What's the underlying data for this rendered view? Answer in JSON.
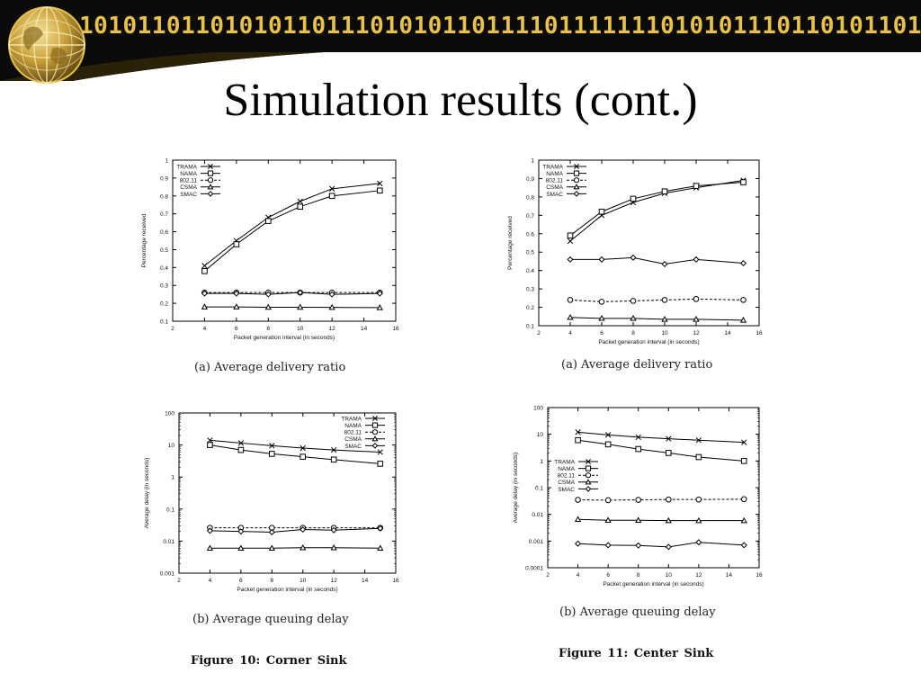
{
  "banner": {
    "binary_text": "10101101101010110111010101101111011111110101011101101011010101101110101011",
    "colors": {
      "bg": "#0b0b0b",
      "digits": "#e8c14a",
      "wave": "#2a2208"
    }
  },
  "title": "Simulation results (cont.)",
  "captions": {
    "tl": "(a) Average delivery ratio",
    "tr": "(a) Average delivery ratio",
    "bl": "(b) Average queuing delay",
    "br": "(b) Average queuing delay",
    "fig10": "Figure 10:  Corner Sink",
    "fig11": "Figure 11:  Center Sink"
  },
  "chart_data": [
    {
      "id": "corner-delivery",
      "type": "line",
      "xlabel": "Packet generation interval (in seconds)",
      "ylabel": "Percentage received",
      "xlim": [
        2,
        16
      ],
      "ylim": [
        0.1,
        1
      ],
      "yscale": "linear",
      "xticks": [
        2,
        4,
        6,
        8,
        10,
        12,
        14,
        16
      ],
      "yticks": [
        0.1,
        0.2,
        0.3,
        0.4,
        0.5,
        0.6,
        0.7,
        0.8,
        0.9,
        1
      ],
      "ytick_labels": [
        "0.1",
        "0.2",
        "0.3",
        "0.4",
        "0.5",
        "0.6",
        "0.7",
        "0.8",
        "0.9",
        "1"
      ],
      "legend_position": "top-left",
      "x": [
        4,
        6,
        8,
        10,
        12,
        15
      ],
      "series": [
        {
          "name": "TRAMA",
          "marker": "x",
          "dash": false,
          "values": [
            0.41,
            0.55,
            0.68,
            0.77,
            0.84,
            0.87
          ]
        },
        {
          "name": "NAMA",
          "marker": "square",
          "dash": false,
          "values": [
            0.38,
            0.53,
            0.66,
            0.74,
            0.8,
            0.83
          ]
        },
        {
          "name": "802.11",
          "marker": "circle",
          "dash": true,
          "values": [
            0.26,
            0.26,
            0.26,
            0.26,
            0.26,
            0.26
          ]
        },
        {
          "name": "CSMA",
          "marker": "triangle",
          "dash": false,
          "values": [
            0.18,
            0.18,
            0.178,
            0.178,
            0.177,
            0.176
          ]
        },
        {
          "name": "SMAC",
          "marker": "diamond",
          "dash": false,
          "values": [
            0.255,
            0.255,
            0.25,
            0.26,
            0.25,
            0.255
          ]
        }
      ]
    },
    {
      "id": "center-delivery",
      "type": "line",
      "xlabel": "Packet generation interval (in seconds)",
      "ylabel": "Percentage received",
      "xlim": [
        2,
        16
      ],
      "ylim": [
        0.1,
        1
      ],
      "yscale": "linear",
      "xticks": [
        2,
        4,
        6,
        8,
        10,
        12,
        14,
        16
      ],
      "yticks": [
        0.1,
        0.2,
        0.3,
        0.4,
        0.5,
        0.6,
        0.7,
        0.8,
        0.9,
        1
      ],
      "ytick_labels": [
        "0.1",
        "0.2",
        "0.3",
        "0.4",
        "0.5",
        "0.6",
        "0.7",
        "0.8",
        "0.9",
        "1"
      ],
      "legend_position": "top-left",
      "x": [
        4,
        6,
        8,
        10,
        12,
        15
      ],
      "series": [
        {
          "name": "TRAMA",
          "marker": "x",
          "dash": false,
          "values": [
            0.56,
            0.7,
            0.77,
            0.82,
            0.85,
            0.89
          ]
        },
        {
          "name": "NAMA",
          "marker": "square",
          "dash": false,
          "values": [
            0.59,
            0.72,
            0.79,
            0.83,
            0.86,
            0.88
          ]
        },
        {
          "name": "802.11",
          "marker": "circle",
          "dash": true,
          "values": [
            0.24,
            0.23,
            0.235,
            0.24,
            0.245,
            0.24
          ]
        },
        {
          "name": "CSMA",
          "marker": "triangle",
          "dash": false,
          "values": [
            0.145,
            0.14,
            0.14,
            0.135,
            0.135,
            0.13
          ]
        },
        {
          "name": "SMAC",
          "marker": "diamond",
          "dash": false,
          "values": [
            0.46,
            0.46,
            0.47,
            0.435,
            0.46,
            0.44
          ]
        }
      ]
    },
    {
      "id": "corner-delay",
      "type": "line",
      "xlabel": "Packet generation interval (in seconds)",
      "ylabel": "Average delay (in seconds)",
      "xlim": [
        2,
        16
      ],
      "ylim": [
        0.001,
        100
      ],
      "yscale": "log",
      "xticks": [
        2,
        4,
        6,
        8,
        10,
        12,
        14,
        16
      ],
      "yticks": [
        0.001,
        0.01,
        0.1,
        1,
        10,
        100
      ],
      "ytick_labels": [
        "0.001",
        "0.01",
        "0.1",
        "1",
        "10",
        "100"
      ],
      "legend_position": "top-right",
      "x": [
        4,
        6,
        8,
        10,
        12,
        15
      ],
      "series": [
        {
          "name": "TRAMA",
          "marker": "x",
          "dash": false,
          "values": [
            14,
            11.5,
            9.5,
            8,
            7,
            6
          ]
        },
        {
          "name": "NAMA",
          "marker": "square",
          "dash": false,
          "values": [
            10,
            7,
            5.3,
            4.3,
            3.5,
            2.6
          ]
        },
        {
          "name": "802.11",
          "marker": "circle",
          "dash": true,
          "values": [
            0.026,
            0.026,
            0.026,
            0.026,
            0.026,
            0.026
          ]
        },
        {
          "name": "CSMA",
          "marker": "triangle",
          "dash": false,
          "values": [
            0.006,
            0.006,
            0.006,
            0.0062,
            0.0062,
            0.006
          ]
        },
        {
          "name": "SMAC",
          "marker": "diamond",
          "dash": false,
          "values": [
            0.021,
            0.02,
            0.019,
            0.023,
            0.022,
            0.025
          ]
        }
      ]
    },
    {
      "id": "center-delay",
      "type": "line",
      "xlabel": "Packet generation interval (in seconds)",
      "ylabel": "Average delay (in seconds)",
      "xlim": [
        2,
        16
      ],
      "ylim": [
        0.0001,
        100
      ],
      "yscale": "log",
      "xticks": [
        2,
        4,
        6,
        8,
        10,
        12,
        14,
        16
      ],
      "yticks": [
        0.0001,
        0.001,
        0.01,
        0.1,
        1,
        10,
        100
      ],
      "ytick_labels": [
        "0.0001",
        "0.001",
        "0.01",
        "0.1",
        "1",
        "10",
        "100"
      ],
      "legend_position": "middle-left",
      "x": [
        4,
        6,
        8,
        10,
        12,
        15
      ],
      "series": [
        {
          "name": "TRAMA",
          "marker": "x",
          "dash": false,
          "values": [
            12,
            9.5,
            7.8,
            6.8,
            6,
            5
          ]
        },
        {
          "name": "NAMA",
          "marker": "square",
          "dash": false,
          "values": [
            6,
            4.2,
            2.8,
            2,
            1.4,
            1
          ]
        },
        {
          "name": "802.11",
          "marker": "circle",
          "dash": true,
          "values": [
            0.035,
            0.034,
            0.035,
            0.036,
            0.036,
            0.037
          ]
        },
        {
          "name": "CSMA",
          "marker": "triangle",
          "dash": false,
          "values": [
            0.0065,
            0.006,
            0.006,
            0.0058,
            0.0058,
            0.0058
          ]
        },
        {
          "name": "SMAC",
          "marker": "diamond",
          "dash": false,
          "values": [
            0.0008,
            0.0007,
            0.00068,
            0.0006,
            0.0009,
            0.0007
          ]
        }
      ]
    }
  ]
}
